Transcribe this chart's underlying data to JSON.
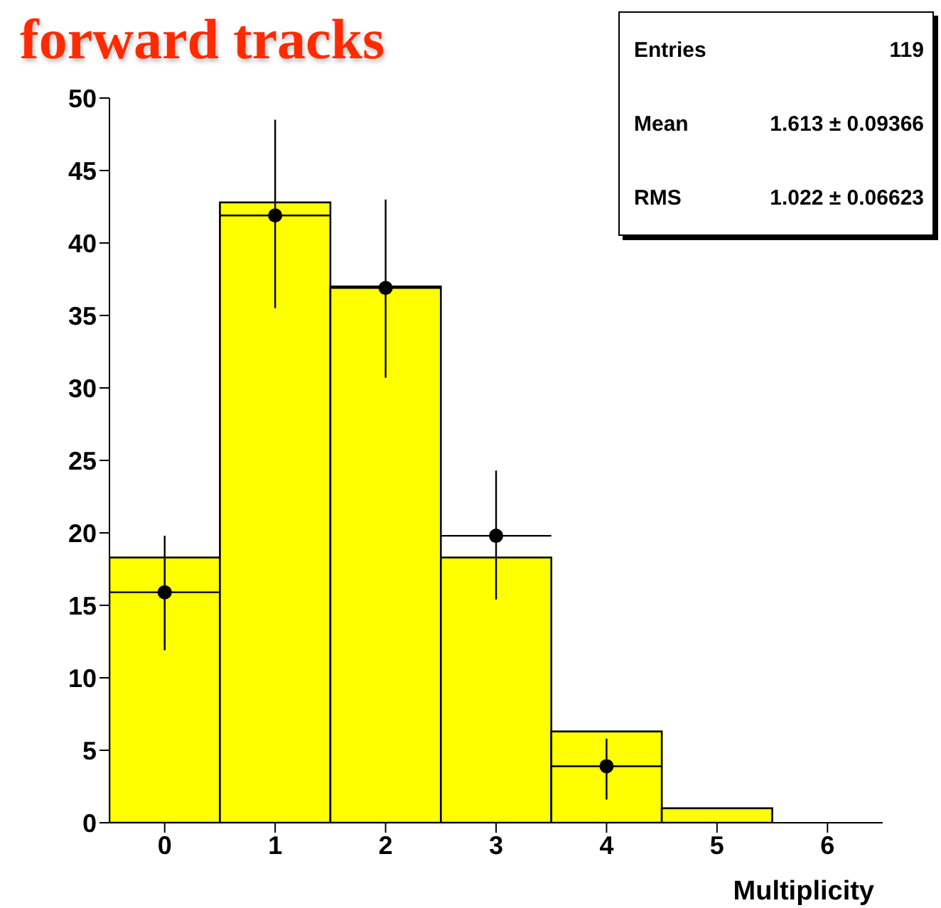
{
  "chart_data": {
    "type": "histogram",
    "title": "forward tracks",
    "xlabel": "Multiplicity",
    "annotations": [
      "Entries",
      "119",
      "Mean",
      "1.613 ± 0.09366",
      "RMS",
      "1.022 ± 0.06623"
    ],
    "xlim": [
      -0.5,
      6.5
    ],
    "xticks": [
      0,
      1,
      2,
      3,
      4,
      5,
      6
    ],
    "ylim": [
      0,
      50
    ],
    "yticks": [
      0,
      5,
      10,
      15,
      20,
      25,
      30,
      35,
      40,
      45,
      50
    ],
    "series": [
      {
        "color": "#ffff00",
        "bins": [
          -0.5,
          0.5,
          1.5,
          2.5,
          3.5,
          4.5,
          5.5,
          6.5
        ],
        "values": [
          18.3,
          42.8,
          37,
          18.3,
          6.3,
          1,
          0
        ]
      },
      {
        "type": "scatter",
        "color": "#000000",
        "marker": "circle",
        "x": [
          0,
          1,
          2,
          3,
          4
        ],
        "values": [
          15.9,
          41.9,
          36.9,
          19.8,
          3.9
        ],
        "errors": [
          [
            11.9,
            19.8
          ],
          [
            35.5,
            48.5
          ],
          [
            30.7,
            43
          ],
          [
            15.4,
            24.3
          ],
          [
            1.6,
            5.8
          ]
        ],
        "xerrors": [
          0.5,
          0.5,
          0.5,
          0.5,
          0.5
        ]
      }
    ]
  }
}
